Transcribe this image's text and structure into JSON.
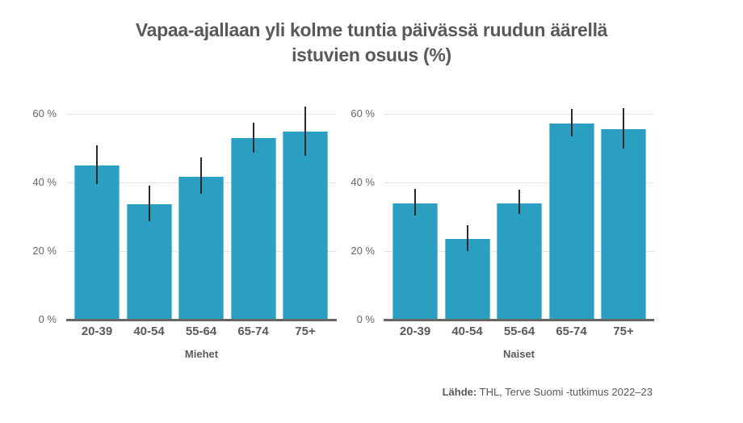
{
  "title_line1": "Vapaa-ajallaan yli kolme tuntia päivässä ruudun äärellä",
  "title_line2": "istuvien osuus (%)",
  "source": {
    "label": "Lähde:",
    "text": "THL, Terve Suomi -tutkimus 2022–23"
  },
  "colors": {
    "bar": "#2a9fc1",
    "error_bar": "#2b2b2b",
    "axis": "#666666",
    "grid": "#e2e2e2",
    "text": "#58595b"
  },
  "chart_data": [
    {
      "type": "bar",
      "title": "Vapaa-ajallaan yli kolme tuntia päivässä ruudun äärellä istuvien osuus (%)",
      "xlabel": "Miehet",
      "ylabel": "",
      "ylim": [
        0,
        60
      ],
      "yticks": [
        "0 %",
        "20 %",
        "40 %",
        "60 %"
      ],
      "grid": true,
      "categories": [
        "20-39",
        "40-54",
        "55-64",
        "65-74",
        "75+"
      ],
      "values": [
        45,
        33.6,
        41.7,
        52.9,
        54.8
      ],
      "error_low": [
        39.6,
        28.8,
        36.6,
        48.7,
        47.7
      ],
      "error_high": [
        50.8,
        39.1,
        47.2,
        57.4,
        62.2
      ]
    },
    {
      "type": "bar",
      "title": "Vapaa-ajallaan yli kolme tuntia päivässä ruudun äärellä istuvien osuus (%)",
      "xlabel": "Naiset",
      "ylabel": "",
      "ylim": [
        0,
        60
      ],
      "yticks": [
        "0 %",
        "20 %",
        "40 %",
        "60 %"
      ],
      "grid": true,
      "categories": [
        "20-39",
        "40-54",
        "55-64",
        "65-74",
        "75+"
      ],
      "values": [
        33.9,
        23.5,
        34.0,
        57.2,
        55.5
      ],
      "error_low": [
        30.3,
        19.9,
        30.9,
        53.3,
        49.9
      ],
      "error_high": [
        38.2,
        27.6,
        37.8,
        61.4,
        61.6
      ]
    }
  ]
}
